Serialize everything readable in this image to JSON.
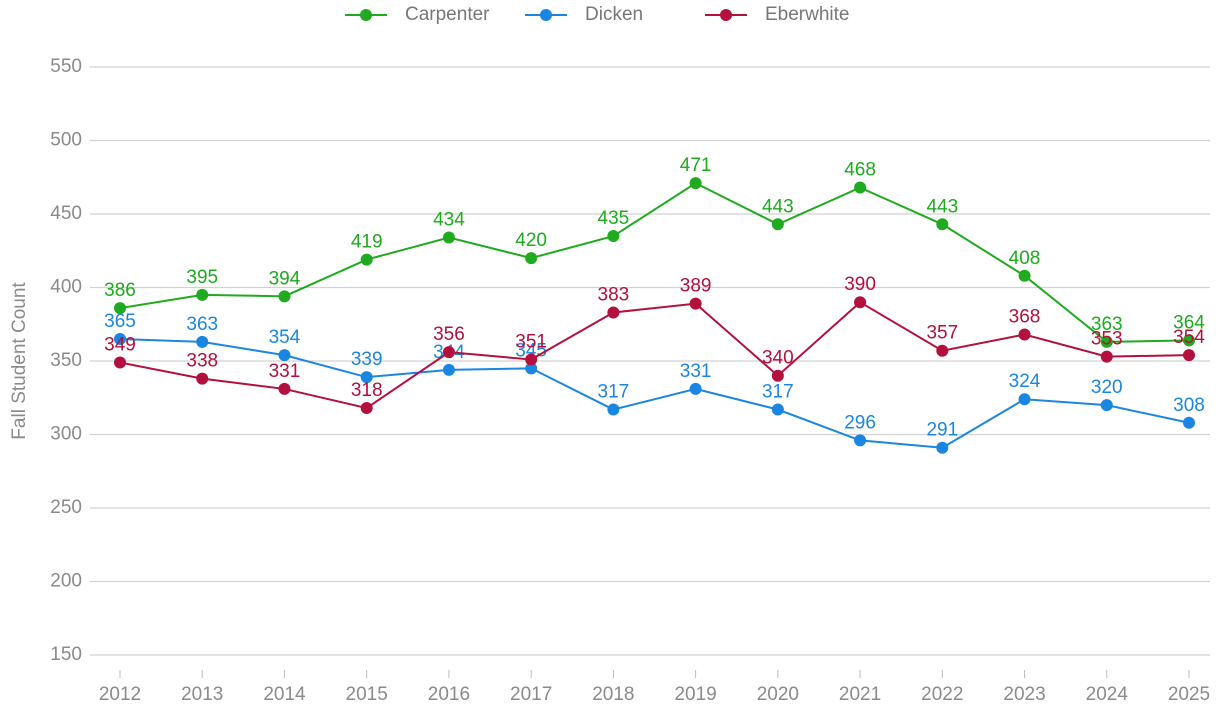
{
  "chart_data": {
    "type": "line",
    "y_label": "Fall Student Count",
    "x": [
      2012,
      2013,
      2014,
      2015,
      2016,
      2017,
      2018,
      2019,
      2020,
      2021,
      2022,
      2023,
      2024,
      2025
    ],
    "series": [
      {
        "name": "Carpenter",
        "color": "#1faa1f",
        "values": [
          386,
          395,
          394,
          419,
          434,
          420,
          435,
          471,
          443,
          468,
          443,
          408,
          363,
          364
        ]
      },
      {
        "name": "Dicken",
        "color": "#1b86e2",
        "values": [
          365,
          363,
          354,
          339,
          344,
          345,
          317,
          331,
          317,
          296,
          291,
          324,
          320,
          308
        ]
      },
      {
        "name": "Eberwhite",
        "color": "#b3103d",
        "values": [
          349,
          338,
          331,
          318,
          356,
          351,
          383,
          389,
          340,
          390,
          357,
          368,
          353,
          354
        ]
      }
    ],
    "xlim": [
      2012,
      2025
    ],
    "xticks": [
      2012,
      2013,
      2014,
      2015,
      2016,
      2017,
      2018,
      2019,
      2020,
      2021,
      2022,
      2023,
      2024,
      2025
    ],
    "ylim": [
      140,
      560
    ],
    "yticks": [
      150,
      200,
      250,
      300,
      350,
      400,
      450,
      500,
      550
    ],
    "grid": true,
    "legend": "top"
  }
}
